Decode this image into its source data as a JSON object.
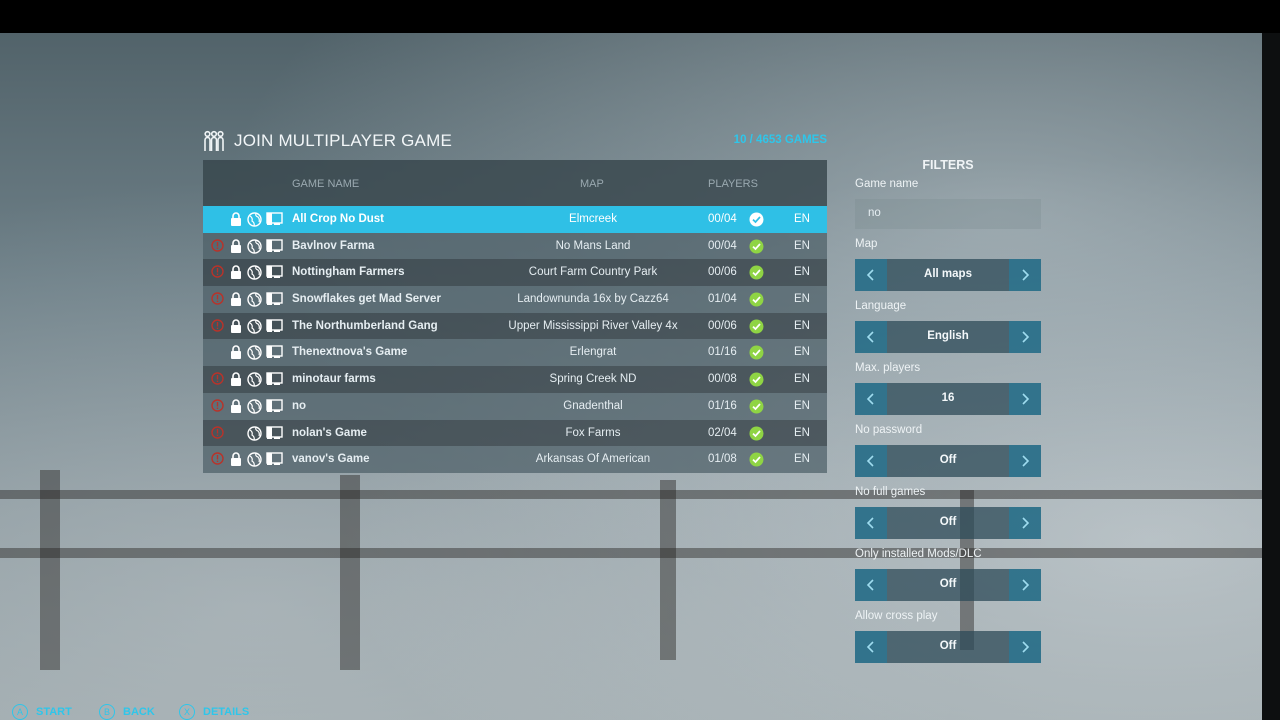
{
  "header": {
    "title": "JOIN MULTIPLAYER GAME",
    "count": "10 / 4653 GAMES"
  },
  "table": {
    "columns": {
      "name": "GAME NAME",
      "map": "MAP",
      "players": "PLAYERS"
    },
    "rows": [
      {
        "name": "All Crop No Dust",
        "map": "Elmcreek",
        "players": "00/04",
        "lang": "EN",
        "warn": false,
        "lock": true,
        "selected": true
      },
      {
        "name": "Bavlnov Farma",
        "map": "No Mans Land",
        "players": "00/04",
        "lang": "EN",
        "warn": true,
        "lock": true
      },
      {
        "name": "Nottingham Farmers",
        "map": "Court Farm Country Park",
        "players": "00/06",
        "lang": "EN",
        "warn": true,
        "lock": true
      },
      {
        "name": "Snowflakes get Mad Server",
        "map": "Landownunda 16x by Cazz64",
        "players": "01/04",
        "lang": "EN",
        "warn": true,
        "lock": true
      },
      {
        "name": "The Northumberland Gang",
        "map": "Upper Mississippi River Valley 4x",
        "players": "00/06",
        "lang": "EN",
        "warn": true,
        "lock": true
      },
      {
        "name": "Thenextnova's Game",
        "map": "Erlengrat",
        "players": "01/16",
        "lang": "EN",
        "warn": false,
        "lock": true
      },
      {
        "name": "minotaur farms",
        "map": "Spring Creek ND",
        "players": "00/08",
        "lang": "EN",
        "warn": true,
        "lock": true
      },
      {
        "name": "no",
        "map": "Gnadenthal",
        "players": "01/16",
        "lang": "EN",
        "warn": true,
        "lock": true
      },
      {
        "name": "nolan's Game",
        "map": "Fox Farms",
        "players": "02/04",
        "lang": "EN",
        "warn": true,
        "lock": false
      },
      {
        "name": "vanov's Game",
        "map": "Arkansas Of American",
        "players": "01/08",
        "lang": "EN",
        "warn": true,
        "lock": true
      }
    ]
  },
  "filters": {
    "title": "FILTERS",
    "game_name": {
      "label": "Game name",
      "value": "no"
    },
    "items": [
      {
        "label": "Map",
        "value": "All maps"
      },
      {
        "label": "Language",
        "value": "English"
      },
      {
        "label": "Max. players",
        "value": "16"
      },
      {
        "label": "No password",
        "value": "Off"
      },
      {
        "label": "No full games",
        "value": "Off"
      },
      {
        "label": "Only installed Mods/DLC",
        "value": "Off"
      },
      {
        "label": "Allow cross play",
        "value": "Off"
      }
    ]
  },
  "footer": [
    {
      "key": "A",
      "label": "START"
    },
    {
      "key": "B",
      "label": "BACK"
    },
    {
      "key": "X",
      "label": "DETAILS"
    }
  ],
  "colors": {
    "accent": "#2ec6ea",
    "selected_row": "#2fc0e6",
    "check_green": "#8fd444",
    "warn_red": "#c0392b"
  },
  "icons": {
    "title": "players-icon",
    "lock": "lock-icon",
    "globe": "globe-icon",
    "platform": "pc-icon",
    "status": "check-icon",
    "warning": "warning-icon"
  }
}
